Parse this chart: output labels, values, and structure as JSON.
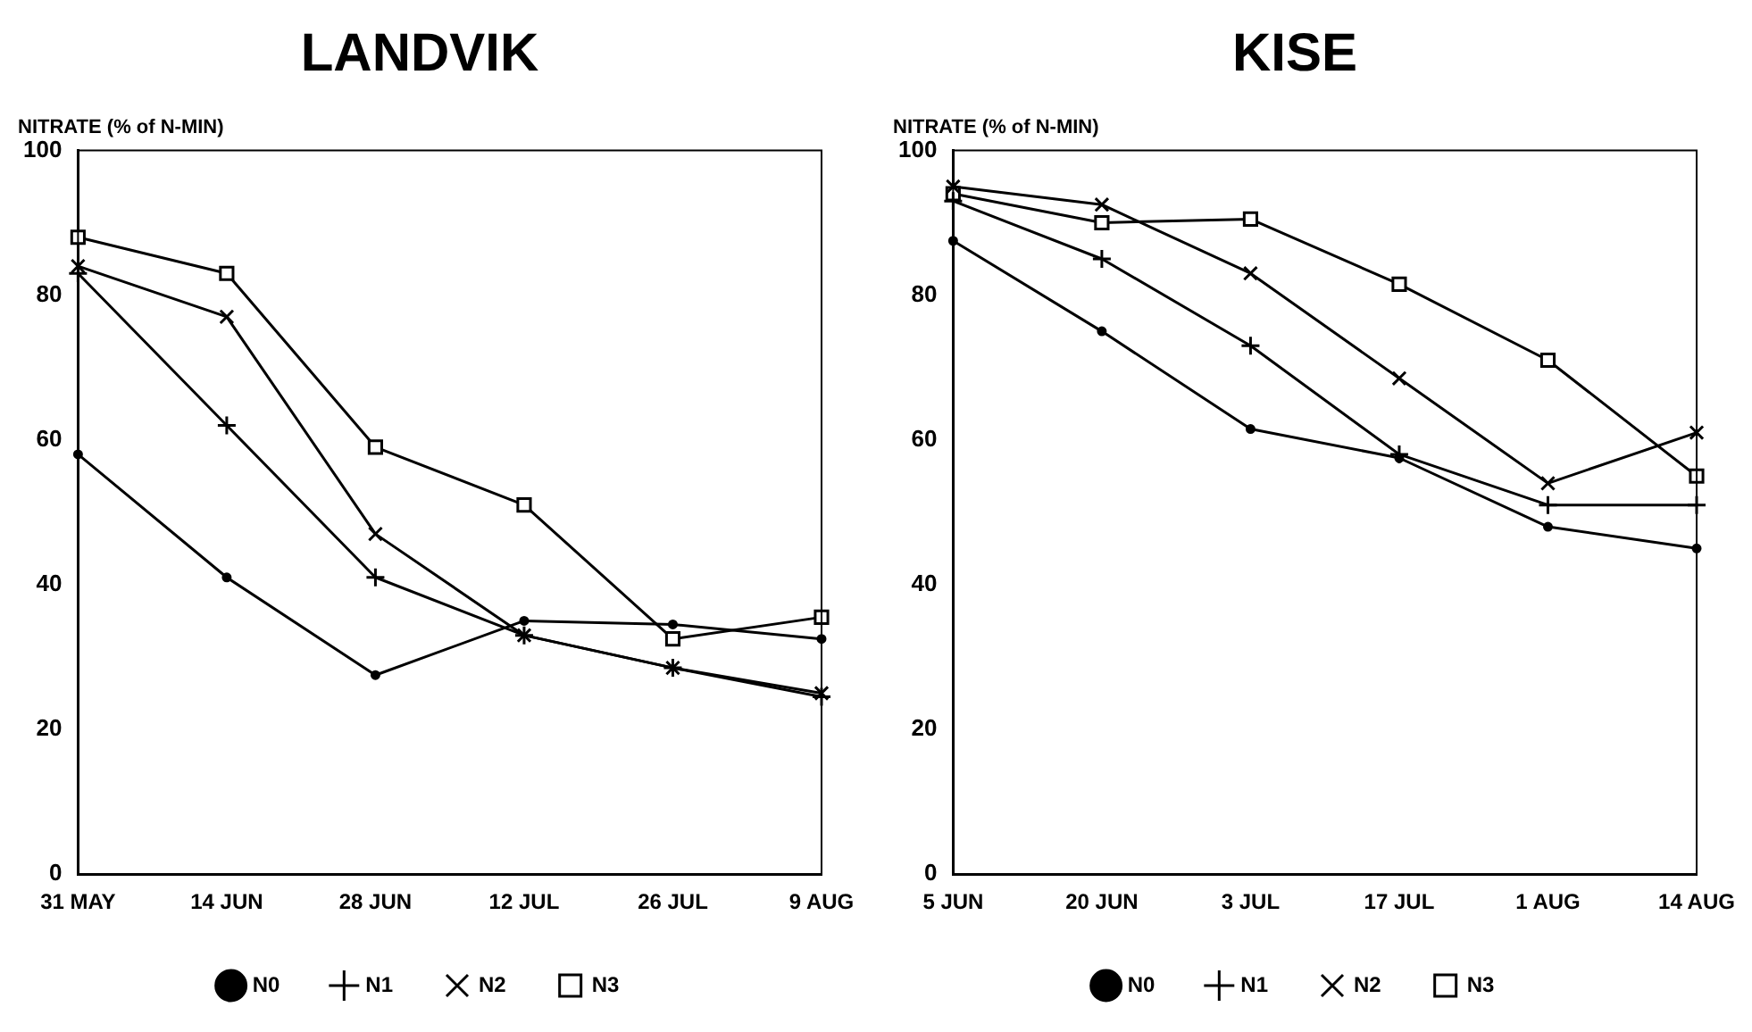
{
  "chart_data": [
    {
      "type": "line",
      "title": "LANDVIK",
      "ylabel": "NITRATE (% of N-MIN)",
      "categories": [
        "31 MAY",
        "14 JUN",
        "28 JUN",
        "12 JUL",
        "26 JUL",
        "9 AUG"
      ],
      "ylim": [
        0,
        100
      ],
      "yticks": [
        0,
        20,
        40,
        60,
        80,
        100
      ],
      "grid": false,
      "legend": "bottom",
      "line_style": "solid",
      "series": [
        {
          "name": "N0",
          "color": "#000000",
          "marker": "circle",
          "values": [
            58,
            41,
            27.5,
            35,
            34.5,
            32.5
          ]
        },
        {
          "name": "N1",
          "color": "#000000",
          "marker": "cross",
          "values": [
            83,
            62,
            41,
            33,
            28.5,
            24.5
          ]
        },
        {
          "name": "N2",
          "color": "#000000",
          "marker": "cross",
          "values": [
            84,
            77,
            47,
            33,
            28.5,
            25
          ]
        },
        {
          "name": "N3",
          "color": "#000000",
          "marker": "square",
          "values": [
            88,
            83,
            59,
            51,
            32.5,
            35.5
          ]
        }
      ]
    },
    {
      "type": "line",
      "title": "KISE",
      "ylabel": "NITRATE (% of N-MIN)",
      "categories": [
        "5 JUN",
        "20 JUN",
        "3 JUL",
        "17 JUL",
        "1 AUG",
        "14 AUG"
      ],
      "ylim": [
        0,
        100
      ],
      "yticks": [
        0,
        20,
        40,
        60,
        80,
        100
      ],
      "grid": false,
      "legend": "bottom",
      "line_style": "solid",
      "series": [
        {
          "name": "N0",
          "color": "#000000",
          "marker": "circle",
          "values": [
            87.5,
            75,
            61.5,
            57.5,
            48,
            45
          ]
        },
        {
          "name": "N1",
          "color": "#000000",
          "marker": "cross",
          "values": [
            93,
            85,
            73,
            58,
            51,
            51
          ]
        },
        {
          "name": "N2",
          "color": "#000000",
          "marker": "cross",
          "values": [
            95,
            92.5,
            83,
            68.5,
            54,
            61
          ]
        },
        {
          "name": "N3",
          "color": "#000000",
          "marker": "square",
          "values": [
            94,
            90,
            90.5,
            81.5,
            71,
            55
          ]
        }
      ]
    }
  ]
}
